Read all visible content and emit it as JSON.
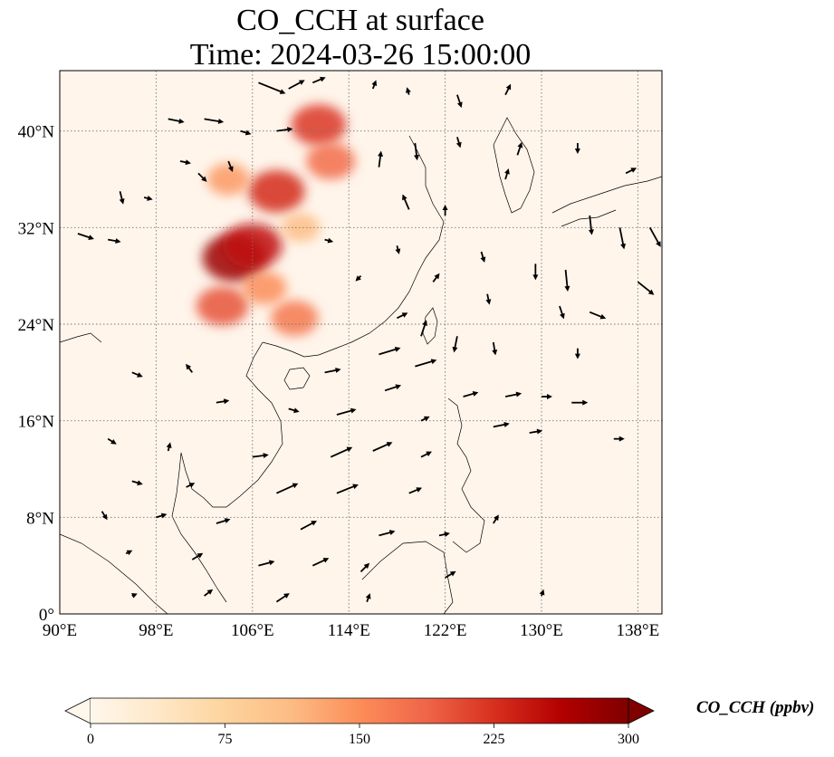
{
  "title": {
    "line1": "CO_CCH at surface",
    "line2": "Time: 2024-03-26 15:00:00"
  },
  "map": {
    "lon_range": [
      90,
      140
    ],
    "lat_range": [
      0,
      45
    ],
    "lon_ticks": [
      {
        "value": 90,
        "label": "90°E"
      },
      {
        "value": 98,
        "label": "98°E"
      },
      {
        "value": 106,
        "label": "106°E"
      },
      {
        "value": 114,
        "label": "114°E"
      },
      {
        "value": 122,
        "label": "122°E"
      },
      {
        "value": 130,
        "label": "130°E"
      },
      {
        "value": 138,
        "label": "138°E"
      }
    ],
    "lat_ticks": [
      {
        "value": 0,
        "label": "0°"
      },
      {
        "value": 8,
        "label": "8°N"
      },
      {
        "value": 16,
        "label": "16°N"
      },
      {
        "value": 24,
        "label": "24°N"
      },
      {
        "value": 32,
        "label": "32°N"
      },
      {
        "value": 40,
        "label": "40°N"
      }
    ],
    "gridlines": true,
    "background_color": "#fff5eb",
    "high_value_regions": [
      {
        "lon": 104.5,
        "lat": 29.5,
        "value": 280
      },
      {
        "lon": 106.0,
        "lat": 30.5,
        "value": 250
      },
      {
        "lon": 108.0,
        "lat": 35.0,
        "value": 230
      },
      {
        "lon": 111.5,
        "lat": 40.5,
        "value": 220
      },
      {
        "lon": 112.5,
        "lat": 37.5,
        "value": 180
      },
      {
        "lon": 103.5,
        "lat": 25.5,
        "value": 200
      },
      {
        "lon": 109.5,
        "lat": 24.5,
        "value": 170
      },
      {
        "lon": 107.0,
        "lat": 27.0,
        "value": 150
      },
      {
        "lon": 104.0,
        "lat": 36.0,
        "value": 140
      },
      {
        "lon": 110.0,
        "lat": 32.0,
        "value": 110
      }
    ],
    "wind_vectors": [
      {
        "lon": 106.5,
        "lat": 44.0,
        "u": 2.5,
        "v": -1.0
      },
      {
        "lon": 109.0,
        "lat": 43.5,
        "u": 1.5,
        "v": 0.8
      },
      {
        "lon": 111.0,
        "lat": 44.0,
        "u": 1.2,
        "v": 0.5
      },
      {
        "lon": 116.0,
        "lat": 43.5,
        "u": 0.3,
        "v": 0.8
      },
      {
        "lon": 119.0,
        "lat": 43.0,
        "u": -0.2,
        "v": 0.7
      },
      {
        "lon": 123.0,
        "lat": 43.0,
        "u": 0.4,
        "v": -1.2
      },
      {
        "lon": 127.0,
        "lat": 43.0,
        "u": 0.5,
        "v": 1.0
      },
      {
        "lon": 99.0,
        "lat": 41.0,
        "u": 1.5,
        "v": -0.3
      },
      {
        "lon": 102.0,
        "lat": 41.0,
        "u": 1.8,
        "v": -0.3
      },
      {
        "lon": 105.0,
        "lat": 40.0,
        "u": 1.0,
        "v": -0.3
      },
      {
        "lon": 108.0,
        "lat": 40.0,
        "u": 1.5,
        "v": 0.2
      },
      {
        "lon": 119.5,
        "lat": 39.0,
        "u": 0.2,
        "v": -1.6
      },
      {
        "lon": 123.0,
        "lat": 39.5,
        "u": 0.3,
        "v": -1.0
      },
      {
        "lon": 128.0,
        "lat": 38.0,
        "u": 0.4,
        "v": 1.2
      },
      {
        "lon": 133.0,
        "lat": 39.0,
        "u": 0.0,
        "v": -1.0
      },
      {
        "lon": 100.0,
        "lat": 37.5,
        "u": 1.0,
        "v": -0.2
      },
      {
        "lon": 101.5,
        "lat": 36.5,
        "u": 0.8,
        "v": -0.8
      },
      {
        "lon": 104.0,
        "lat": 37.5,
        "u": 0.4,
        "v": -1.0
      },
      {
        "lon": 116.5,
        "lat": 37.0,
        "u": 0.2,
        "v": 1.5
      },
      {
        "lon": 127.0,
        "lat": 36.0,
        "u": 0.3,
        "v": 1.0
      },
      {
        "lon": 137.0,
        "lat": 36.5,
        "u": 1.0,
        "v": 0.5
      },
      {
        "lon": 95.0,
        "lat": 35.0,
        "u": 0.3,
        "v": -1.2
      },
      {
        "lon": 97.0,
        "lat": 34.5,
        "u": 0.8,
        "v": -0.2
      },
      {
        "lon": 119.0,
        "lat": 33.5,
        "u": -0.6,
        "v": 1.4
      },
      {
        "lon": 122.0,
        "lat": 33.0,
        "u": 0.0,
        "v": 1.0
      },
      {
        "lon": 134.0,
        "lat": 33.0,
        "u": 0.2,
        "v": -1.8
      },
      {
        "lon": 136.5,
        "lat": 32.0,
        "u": 0.4,
        "v": -2.0
      },
      {
        "lon": 139.0,
        "lat": 32.0,
        "u": 1.0,
        "v": -1.8
      },
      {
        "lon": 91.5,
        "lat": 31.5,
        "u": 1.5,
        "v": -0.5
      },
      {
        "lon": 94.0,
        "lat": 31.0,
        "u": 1.2,
        "v": -0.2
      },
      {
        "lon": 112.0,
        "lat": 31.0,
        "u": 0.8,
        "v": -0.2
      },
      {
        "lon": 118.0,
        "lat": 30.5,
        "u": 0.2,
        "v": -0.8
      },
      {
        "lon": 125.0,
        "lat": 30.0,
        "u": 0.3,
        "v": -1.0
      },
      {
        "lon": 129.5,
        "lat": 29.0,
        "u": 0.0,
        "v": -1.5
      },
      {
        "lon": 132.0,
        "lat": 28.5,
        "u": 0.2,
        "v": -2.0
      },
      {
        "lon": 138.0,
        "lat": 27.5,
        "u": 1.5,
        "v": -1.2
      },
      {
        "lon": 115.0,
        "lat": 28.0,
        "u": -0.5,
        "v": -0.5
      },
      {
        "lon": 121.0,
        "lat": 27.5,
        "u": 0.6,
        "v": 0.8
      },
      {
        "lon": 125.5,
        "lat": 26.5,
        "u": 0.2,
        "v": -1.0
      },
      {
        "lon": 131.5,
        "lat": 25.5,
        "u": 0.4,
        "v": -1.2
      },
      {
        "lon": 134.0,
        "lat": 25.0,
        "u": 1.5,
        "v": -0.6
      },
      {
        "lon": 118.0,
        "lat": 24.5,
        "u": 1.0,
        "v": 0.5
      },
      {
        "lon": 120.0,
        "lat": 23.0,
        "u": 0.5,
        "v": 1.5
      },
      {
        "lon": 123.0,
        "lat": 23.0,
        "u": -0.3,
        "v": -1.5
      },
      {
        "lon": 126.0,
        "lat": 22.5,
        "u": 0.2,
        "v": -1.2
      },
      {
        "lon": 133.0,
        "lat": 22.0,
        "u": 0.0,
        "v": -1.0
      },
      {
        "lon": 116.5,
        "lat": 21.5,
        "u": 2.0,
        "v": 0.6
      },
      {
        "lon": 119.5,
        "lat": 20.5,
        "u": 2.0,
        "v": 0.6
      },
      {
        "lon": 112.0,
        "lat": 20.0,
        "u": 1.5,
        "v": 0.3
      },
      {
        "lon": 96.0,
        "lat": 20.0,
        "u": 1.0,
        "v": -0.4
      },
      {
        "lon": 101.0,
        "lat": 20.0,
        "u": -0.6,
        "v": 0.8
      },
      {
        "lon": 117.0,
        "lat": 18.5,
        "u": 1.5,
        "v": 0.5
      },
      {
        "lon": 123.5,
        "lat": 18.0,
        "u": 1.4,
        "v": 0.4
      },
      {
        "lon": 127.0,
        "lat": 18.0,
        "u": 1.5,
        "v": 0.3
      },
      {
        "lon": 130.0,
        "lat": 18.0,
        "u": 1.0,
        "v": 0.0
      },
      {
        "lon": 132.5,
        "lat": 17.5,
        "u": 1.5,
        "v": 0.0
      },
      {
        "lon": 103.0,
        "lat": 17.5,
        "u": 1.2,
        "v": 0.2
      },
      {
        "lon": 109.0,
        "lat": 17.0,
        "u": 1.0,
        "v": -0.3
      },
      {
        "lon": 113.0,
        "lat": 16.5,
        "u": 1.8,
        "v": 0.5
      },
      {
        "lon": 120.0,
        "lat": 16.0,
        "u": 0.8,
        "v": 0.4
      },
      {
        "lon": 126.0,
        "lat": 15.5,
        "u": 1.5,
        "v": 0.3
      },
      {
        "lon": 129.0,
        "lat": 15.0,
        "u": 1.2,
        "v": 0.2
      },
      {
        "lon": 136.0,
        "lat": 14.5,
        "u": 1.0,
        "v": 0.0
      },
      {
        "lon": 94.0,
        "lat": 14.5,
        "u": 0.8,
        "v": -0.5
      },
      {
        "lon": 99.0,
        "lat": 13.5,
        "u": 0.2,
        "v": 0.8
      },
      {
        "lon": 106.0,
        "lat": 13.0,
        "u": 1.5,
        "v": 0.2
      },
      {
        "lon": 112.5,
        "lat": 13.0,
        "u": 2.0,
        "v": 0.9
      },
      {
        "lon": 116.0,
        "lat": 13.5,
        "u": 1.8,
        "v": 0.8
      },
      {
        "lon": 120.0,
        "lat": 13.0,
        "u": 1.0,
        "v": 0.5
      },
      {
        "lon": 96.0,
        "lat": 11.0,
        "u": 1.0,
        "v": -0.3
      },
      {
        "lon": 100.5,
        "lat": 10.5,
        "u": 0.8,
        "v": 0.4
      },
      {
        "lon": 108.0,
        "lat": 10.0,
        "u": 2.0,
        "v": 0.9
      },
      {
        "lon": 113.0,
        "lat": 10.0,
        "u": 2.0,
        "v": 0.8
      },
      {
        "lon": 119.0,
        "lat": 10.0,
        "u": 1.2,
        "v": 0.5
      },
      {
        "lon": 93.5,
        "lat": 8.5,
        "u": 0.5,
        "v": -0.8
      },
      {
        "lon": 98.0,
        "lat": 8.0,
        "u": 1.0,
        "v": 0.3
      },
      {
        "lon": 103.0,
        "lat": 7.5,
        "u": 1.3,
        "v": 0.4
      },
      {
        "lon": 110.0,
        "lat": 7.0,
        "u": 1.5,
        "v": 0.8
      },
      {
        "lon": 116.5,
        "lat": 6.5,
        "u": 1.5,
        "v": 0.4
      },
      {
        "lon": 121.5,
        "lat": 6.5,
        "u": 1.0,
        "v": 0.2
      },
      {
        "lon": 126.0,
        "lat": 7.5,
        "u": 0.5,
        "v": 0.8
      },
      {
        "lon": 95.5,
        "lat": 5.0,
        "u": 0.6,
        "v": 0.3
      },
      {
        "lon": 101.0,
        "lat": 4.5,
        "u": 1.0,
        "v": 0.6
      },
      {
        "lon": 106.5,
        "lat": 4.0,
        "u": 1.5,
        "v": 0.4
      },
      {
        "lon": 111.0,
        "lat": 4.0,
        "u": 1.5,
        "v": 0.7
      },
      {
        "lon": 115.0,
        "lat": 3.5,
        "u": 0.8,
        "v": 0.8
      },
      {
        "lon": 122.0,
        "lat": 3.0,
        "u": 1.0,
        "v": 0.6
      },
      {
        "lon": 96.0,
        "lat": 1.5,
        "u": 0.5,
        "v": 0.2
      },
      {
        "lon": 102.0,
        "lat": 1.5,
        "u": 0.8,
        "v": 0.6
      },
      {
        "lon": 108.0,
        "lat": 1.0,
        "u": 1.2,
        "v": 0.8
      },
      {
        "lon": 115.5,
        "lat": 1.0,
        "u": 0.3,
        "v": 0.8
      },
      {
        "lon": 130.0,
        "lat": 1.5,
        "u": 0.2,
        "v": 0.6
      }
    ]
  },
  "colorbar": {
    "label": "CO_CCH (ppbv)",
    "min": 0,
    "max": 300,
    "ticks": [
      {
        "value": 0,
        "label": "0"
      },
      {
        "value": 75,
        "label": "75"
      },
      {
        "value": 150,
        "label": "150"
      },
      {
        "value": 225,
        "label": "225"
      },
      {
        "value": 300,
        "label": "300"
      }
    ],
    "extend": "both",
    "colormap": "OrRd",
    "colors": [
      "#fff7ec",
      "#fee8c8",
      "#fdd49e",
      "#fdbb84",
      "#fc8d59",
      "#ef6548",
      "#d7301f",
      "#b30000",
      "#7f0000"
    ]
  }
}
